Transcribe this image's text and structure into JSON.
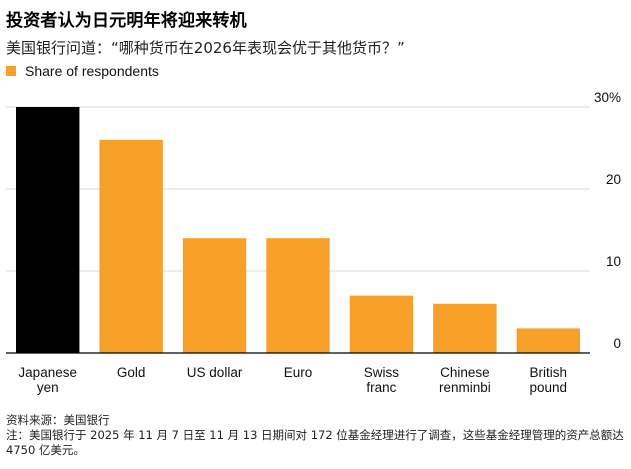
{
  "header": {
    "title": "投资者认为日元明年将迎来转机",
    "subtitle": "美国银行问道：“哪种货币在2026年表现会优于其他货币？”"
  },
  "legend": {
    "label": "Share of respondents",
    "color": "#f7a12b"
  },
  "footer": {
    "source": "资料来源：美国银行",
    "note": "注：美国银行于 2025 年 11 月 7 日至 11 月 13 日期间对 172 位基金经理进行了调查，这些基金经理管理的资产总额达 4750 亿美元。"
  },
  "colors": {
    "bar": "#f7a12b",
    "highlight": "#000000",
    "grid": "#d9d9d9",
    "axis": "#000000"
  },
  "chart_data": {
    "type": "bar",
    "categories": [
      [
        "Japanese",
        "yen"
      ],
      [
        "Gold"
      ],
      [
        "US dollar"
      ],
      [
        "Euro"
      ],
      [
        "Swiss",
        "franc"
      ],
      [
        "Chinese",
        "renminbi"
      ],
      [
        "British",
        "pound"
      ]
    ],
    "series": [
      {
        "name": "Share of respondents",
        "values": [
          30,
          26,
          14,
          14,
          7,
          6,
          3
        ]
      }
    ],
    "highlight_index": 0,
    "ylim": [
      0,
      30
    ],
    "yticks": [
      0,
      10,
      20,
      30
    ],
    "ytick_labels": [
      "0",
      "10",
      "20",
      "30%"
    ],
    "y_axis_position": "right",
    "grid": true
  }
}
